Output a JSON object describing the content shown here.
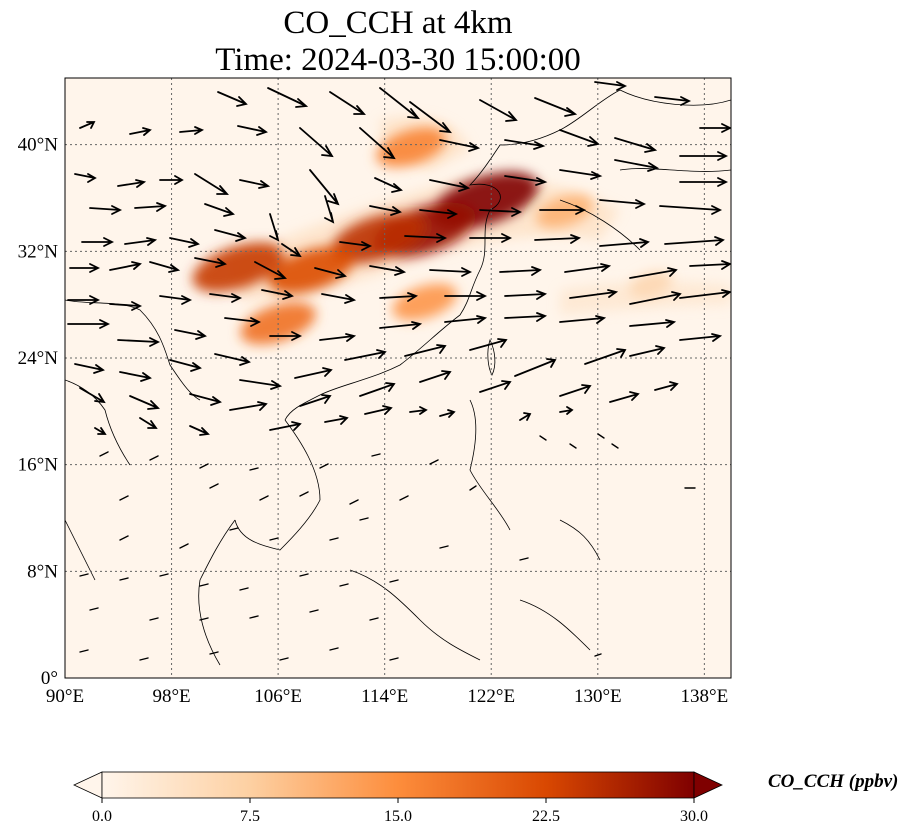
{
  "title": {
    "line1": "CO_CCH at 4km",
    "line2": "Time: 2024-03-30 15:00:00"
  },
  "map": {
    "lon_range": [
      90,
      140
    ],
    "lat_range": [
      0,
      45
    ],
    "gridlines": true,
    "x_ticks": [
      {
        "value": 90,
        "label": "90°E"
      },
      {
        "value": 98,
        "label": "98°E"
      },
      {
        "value": 106,
        "label": "106°E"
      },
      {
        "value": 114,
        "label": "114°E"
      },
      {
        "value": 122,
        "label": "122°E"
      },
      {
        "value": 130,
        "label": "130°E"
      },
      {
        "value": 138,
        "label": "138°E"
      }
    ],
    "y_ticks": [
      {
        "value": 0,
        "label": "0°"
      },
      {
        "value": 8,
        "label": "8°N"
      },
      {
        "value": 16,
        "label": "16°N"
      },
      {
        "value": 24,
        "label": "24°N"
      },
      {
        "value": 32,
        "label": "32°N"
      },
      {
        "value": 40,
        "label": "40°N"
      }
    ],
    "plumes": [
      {
        "lon": 121.5,
        "lat": 35.8,
        "value": 30
      },
      {
        "lon": 117.0,
        "lat": 33.6,
        "value": 28
      },
      {
        "lon": 113.5,
        "lat": 33.0,
        "value": 25
      },
      {
        "lon": 108.5,
        "lat": 30.6,
        "value": 22
      },
      {
        "lon": 103.0,
        "lat": 30.8,
        "value": 24
      },
      {
        "lon": 106.0,
        "lat": 26.6,
        "value": 18
      },
      {
        "lon": 116.0,
        "lat": 39.8,
        "value": 16
      },
      {
        "lon": 117.0,
        "lat": 28.2,
        "value": 14
      },
      {
        "lon": 127.5,
        "lat": 35.0,
        "value": 11
      },
      {
        "lon": 134.0,
        "lat": 29.5,
        "value": 6
      }
    ]
  },
  "colorbar": {
    "vmin": 0,
    "vmax": 30,
    "extend": "both",
    "ticks": [
      {
        "value": 0,
        "label": "0.0"
      },
      {
        "value": 7.5,
        "label": "7.5"
      },
      {
        "value": 15,
        "label": "15.0"
      },
      {
        "value": 22.5,
        "label": "22.5"
      },
      {
        "value": 30,
        "label": "30.0"
      }
    ],
    "label": "CO_CCH (ppbv)",
    "colors": [
      "#fff5eb",
      "#fdd0a2",
      "#fd8d3c",
      "#d94801",
      "#7f0000"
    ]
  }
}
